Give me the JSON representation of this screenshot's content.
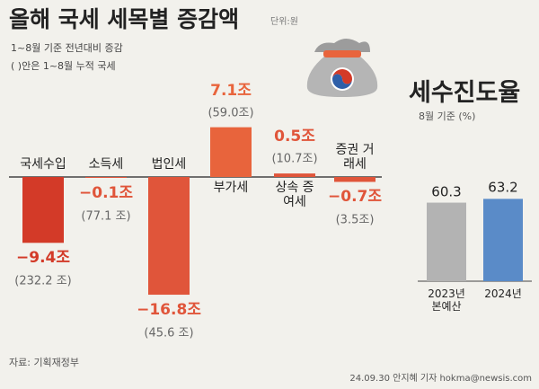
{
  "chart_data": [
    {
      "type": "bar",
      "title": "올해 국세 세목별 증감액",
      "unit": "단위:원",
      "subtitle": "1~8월 기준 전년대비 증감",
      "note": "( )안은 1~8월 누적 국세",
      "categories": [
        "국세수입",
        "소득세",
        "법인세",
        "부가세",
        "상속 증여세",
        "증권 거래세"
      ],
      "values": [
        -9.4,
        -0.1,
        -16.8,
        7.1,
        0.5,
        -0.7
      ],
      "value_labels": [
        "−9.4조",
        "−0.1조",
        "−16.8조",
        "7.1조",
        "0.5조",
        "−0.7조"
      ],
      "cumulative_labels": [
        "(232.2 조)",
        "(77.1 조)",
        "(45.6 조)",
        "(59.0조)",
        "(10.7조)",
        "(3.5조)"
      ],
      "colors": [
        "#d33a28",
        "#e0553a",
        "#e0553a",
        "#e8643c",
        "#e0553a",
        "#e0553a"
      ]
    },
    {
      "type": "bar",
      "title": "세수진도율",
      "subtitle": "8월 기준 (%)",
      "categories": [
        "2023년 본예산",
        "2024년"
      ],
      "values": [
        60.3,
        63.2
      ],
      "colors": [
        "#b3b3b3",
        "#5a8bc8"
      ]
    }
  ],
  "source": "자료: 기획재정부",
  "credit": "24.09.30 안지혜 기자 hokma@newsis.com"
}
